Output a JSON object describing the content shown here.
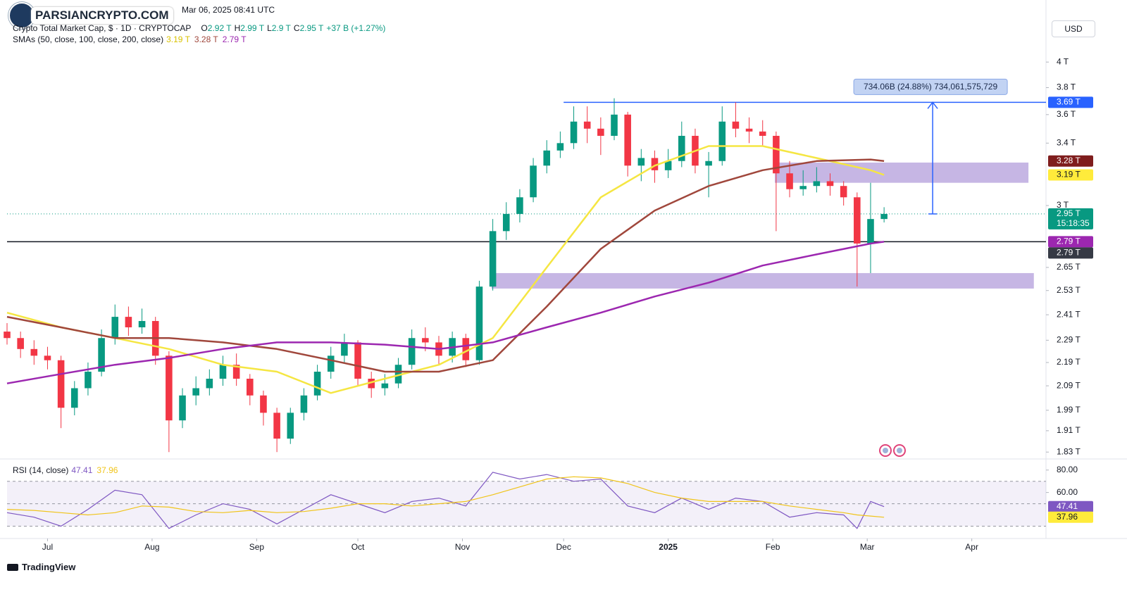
{
  "header": {
    "watermark": "PARSIANCRYPTO.COM",
    "timestamp": "Mar 06, 2025 08:41 UTC",
    "symbol": "Crypto Total Market Cap, $ · 1D · CRYPTOCAP",
    "ohlc": [
      {
        "key": "O",
        "value": "2.92 T"
      },
      {
        "key": "H",
        "value": "2.99 T"
      },
      {
        "key": "L",
        "value": "2.9 T"
      },
      {
        "key": "C",
        "value": "2.95 T"
      }
    ],
    "change": "+37 B (+1.27%)",
    "sma_label": "SMAs (50, close, 100, close, 200, close)",
    "currency": "USD",
    "brand": "TradingView"
  },
  "chart_data": {
    "type": "candlestick",
    "log_scale": true,
    "up_color": "#089981",
    "down_color": "#f23645",
    "candles": [
      [
        2.33,
        2.37,
        2.27,
        2.3
      ],
      [
        2.3,
        2.33,
        2.21,
        2.25
      ],
      [
        2.25,
        2.29,
        2.18,
        2.22
      ],
      [
        2.22,
        2.26,
        2.16,
        2.2
      ],
      [
        2.2,
        2.22,
        1.92,
        2.0
      ],
      [
        2.0,
        2.11,
        1.97,
        2.08
      ],
      [
        2.08,
        2.19,
        2.05,
        2.15
      ],
      [
        2.15,
        2.34,
        2.13,
        2.3
      ],
      [
        2.3,
        2.46,
        2.27,
        2.4
      ],
      [
        2.4,
        2.45,
        2.31,
        2.35
      ],
      [
        2.35,
        2.44,
        2.32,
        2.38
      ],
      [
        2.38,
        2.4,
        2.18,
        2.22
      ],
      [
        2.22,
        2.24,
        1.83,
        1.95
      ],
      [
        1.95,
        2.08,
        1.92,
        2.05
      ],
      [
        2.05,
        2.13,
        2.01,
        2.08
      ],
      [
        2.08,
        2.16,
        2.05,
        2.12
      ],
      [
        2.12,
        2.22,
        2.09,
        2.18
      ],
      [
        2.18,
        2.23,
        2.09,
        2.12
      ],
      [
        2.12,
        2.14,
        2.01,
        2.05
      ],
      [
        2.05,
        2.07,
        1.93,
        1.98
      ],
      [
        1.98,
        2.0,
        1.83,
        1.88
      ],
      [
        1.88,
        2.0,
        1.86,
        1.98
      ],
      [
        1.98,
        2.08,
        1.95,
        2.05
      ],
      [
        2.05,
        2.18,
        2.03,
        2.15
      ],
      [
        2.15,
        2.26,
        2.12,
        2.22
      ],
      [
        2.22,
        2.32,
        2.19,
        2.28
      ],
      [
        2.28,
        2.29,
        2.09,
        2.12
      ],
      [
        2.12,
        2.15,
        2.04,
        2.08
      ],
      [
        2.08,
        2.14,
        2.05,
        2.1
      ],
      [
        2.1,
        2.21,
        2.08,
        2.18
      ],
      [
        2.18,
        2.34,
        2.16,
        2.3
      ],
      [
        2.3,
        2.35,
        2.24,
        2.28
      ],
      [
        2.28,
        2.31,
        2.18,
        2.22
      ],
      [
        2.22,
        2.33,
        2.19,
        2.3
      ],
      [
        2.3,
        2.32,
        2.17,
        2.2
      ],
      [
        2.2,
        2.58,
        2.18,
        2.55
      ],
      [
        2.55,
        2.92,
        2.53,
        2.85
      ],
      [
        2.85,
        3.02,
        2.8,
        2.95
      ],
      [
        2.95,
        3.1,
        2.9,
        3.05
      ],
      [
        3.05,
        3.3,
        3.02,
        3.25
      ],
      [
        3.25,
        3.42,
        3.2,
        3.35
      ],
      [
        3.35,
        3.48,
        3.3,
        3.4
      ],
      [
        3.4,
        3.66,
        3.36,
        3.55
      ],
      [
        3.55,
        3.66,
        3.4,
        3.5
      ],
      [
        3.5,
        3.58,
        3.32,
        3.45
      ],
      [
        3.45,
        3.72,
        3.42,
        3.6
      ],
      [
        3.6,
        3.62,
        3.18,
        3.25
      ],
      [
        3.25,
        3.36,
        3.15,
        3.3
      ],
      [
        3.3,
        3.35,
        3.14,
        3.22
      ],
      [
        3.22,
        3.36,
        3.17,
        3.28
      ],
      [
        3.28,
        3.55,
        3.24,
        3.45
      ],
      [
        3.45,
        3.5,
        3.2,
        3.25
      ],
      [
        3.25,
        3.34,
        3.05,
        3.28
      ],
      [
        3.28,
        3.66,
        3.25,
        3.55
      ],
      [
        3.55,
        3.69,
        3.44,
        3.5
      ],
      [
        3.5,
        3.58,
        3.4,
        3.48
      ],
      [
        3.48,
        3.56,
        3.38,
        3.45
      ],
      [
        3.45,
        3.48,
        2.85,
        3.2
      ],
      [
        3.2,
        3.28,
        3.05,
        3.1
      ],
      [
        3.1,
        3.22,
        3.06,
        3.12
      ],
      [
        3.12,
        3.24,
        3.08,
        3.15
      ],
      [
        3.15,
        3.2,
        3.06,
        3.12
      ],
      [
        3.12,
        3.15,
        3.0,
        3.05
      ],
      [
        3.05,
        3.08,
        2.55,
        2.78
      ],
      [
        2.78,
        3.14,
        2.62,
        2.92
      ],
      [
        2.92,
        2.99,
        2.9,
        2.95
      ]
    ],
    "xlim": [
      0,
      77
    ],
    "xticks": [
      {
        "value": 3,
        "label": "Jul"
      },
      {
        "value": 10.75,
        "label": "Aug"
      },
      {
        "value": 18.5,
        "label": "Sep"
      },
      {
        "value": 26,
        "label": "Oct"
      },
      {
        "value": 33.75,
        "label": "Nov"
      },
      {
        "value": 41.25,
        "label": "Dec"
      },
      {
        "value": 49,
        "label": "2025"
      },
      {
        "value": 56.75,
        "label": "Feb"
      },
      {
        "value": 63.75,
        "label": "Mar"
      },
      {
        "value": 71.5,
        "label": "Apr"
      }
    ],
    "ylim": [
      1.81,
      4.53
    ],
    "yticks": [
      {
        "value": 1.83,
        "label": "1.83 T"
      },
      {
        "value": 1.91,
        "label": "1.91 T"
      },
      {
        "value": 1.99,
        "label": "1.99 T"
      },
      {
        "value": 2.09,
        "label": "2.09 T"
      },
      {
        "value": 2.19,
        "label": "2.19 T"
      },
      {
        "value": 2.29,
        "label": "2.29 T"
      },
      {
        "value": 2.41,
        "label": "2.41 T"
      },
      {
        "value": 2.53,
        "label": "2.53 T"
      },
      {
        "value": 2.65,
        "label": "2.65 T"
      },
      {
        "value": 3,
        "label": "3 T"
      },
      {
        "value": 3.4,
        "label": "3.4 T"
      },
      {
        "value": 3.6,
        "label": "3.6 T"
      },
      {
        "value": 3.8,
        "label": "3.8 T"
      },
      {
        "value": 4,
        "label": "4 T"
      }
    ],
    "series": [
      {
        "legend_value": "3.19 T",
        "color": "#f5e642",
        "x": [
          0,
          4,
          8,
          12,
          16,
          20,
          24,
          28,
          32,
          36,
          40,
          44,
          48,
          52,
          56,
          60,
          64,
          65
        ],
        "values": [
          2.42,
          2.35,
          2.3,
          2.25,
          2.18,
          2.15,
          2.06,
          2.12,
          2.18,
          2.3,
          2.65,
          3.05,
          3.25,
          3.38,
          3.38,
          3.3,
          3.22,
          3.19
        ]
      },
      {
        "legend_value": "3.28 T",
        "color": "#a0473c",
        "x": [
          0,
          4,
          8,
          12,
          16,
          20,
          24,
          28,
          32,
          36,
          40,
          44,
          48,
          52,
          56,
          60,
          64,
          65
        ],
        "values": [
          2.4,
          2.35,
          2.3,
          2.3,
          2.28,
          2.25,
          2.2,
          2.15,
          2.15,
          2.2,
          2.45,
          2.75,
          2.97,
          3.12,
          3.22,
          3.28,
          3.29,
          3.28
        ]
      },
      {
        "legend_value": "2.79 T",
        "color": "#9c27b0",
        "x": [
          0,
          4,
          8,
          12,
          16,
          20,
          24,
          28,
          32,
          36,
          40,
          44,
          48,
          52,
          56,
          60,
          64,
          65
        ],
        "values": [
          2.1,
          2.14,
          2.18,
          2.21,
          2.25,
          2.28,
          2.28,
          2.27,
          2.25,
          2.28,
          2.35,
          2.42,
          2.5,
          2.57,
          2.66,
          2.72,
          2.78,
          2.79
        ]
      }
    ],
    "lines": [
      {
        "value": 3.69,
        "from": 41.25,
        "color": "#2962ff"
      },
      {
        "value": 2.79,
        "from": 0,
        "color": "#131722"
      }
    ],
    "zones": [
      {
        "from": 56.9,
        "to": 75.7,
        "low": 3.14,
        "high": 3.27,
        "color": "#b39ddb"
      },
      {
        "from": 35.9,
        "to": 76.1,
        "low": 2.54,
        "high": 2.62,
        "color": "#b39ddb"
      }
    ],
    "measure": {
      "x": 68.6,
      "from": 2.95,
      "to": 3.69,
      "label": "734.06B (24.88%) 734,061,575,729",
      "color": "#2962ff"
    },
    "badges": [
      {
        "value": 3.69,
        "label": "3.69 T",
        "color": "#2962ff",
        "text_color": "#ffffff"
      },
      {
        "value": 3.28,
        "label": "3.28 T",
        "color": "#7f1d1d",
        "text_color": "#ffffff"
      },
      {
        "value": 3.19,
        "label": "3.19 T",
        "color": "#ffeb3b",
        "text_color": "#131722"
      },
      {
        "value": 2.95,
        "label": "2.95 T",
        "countdown": "15:18:35",
        "color": "#089981",
        "text_color": "#ffffff"
      },
      {
        "value": 2.79,
        "label": "2.79 T",
        "color": "#9c27b0",
        "text_color": "#ffffff"
      },
      {
        "value": 2.79,
        "label": "2.79 T",
        "color": "#363a45",
        "text_color": "#ffffff"
      }
    ],
    "rsi": {
      "title": "RSI (14, close)",
      "ylim": [
        19,
        88
      ],
      "yticks": [
        {
          "value": 80,
          "label": "80.00"
        },
        {
          "value": 60,
          "label": "60.00"
        }
      ],
      "band_lines": [
        70,
        50,
        30
      ],
      "series": [
        {
          "legend_value": "47.41",
          "color": "#7e57c2",
          "x": [
            0,
            2,
            4,
            6,
            8,
            10,
            12,
            14,
            16,
            18,
            20,
            22,
            24,
            26,
            28,
            30,
            32,
            34,
            36,
            38,
            40,
            42,
            44,
            46,
            48,
            50,
            52,
            54,
            56,
            58,
            60,
            62,
            63,
            64,
            65
          ],
          "values": [
            42,
            38,
            30,
            45,
            62,
            58,
            28,
            40,
            50,
            45,
            32,
            45,
            58,
            50,
            42,
            52,
            55,
            48,
            78,
            72,
            76,
            70,
            72,
            48,
            42,
            55,
            45,
            55,
            52,
            38,
            42,
            40,
            28,
            52,
            47.41
          ]
        },
        {
          "legend_value": "37.96",
          "color": "#f0c419",
          "x": [
            0,
            2,
            4,
            6,
            8,
            10,
            12,
            14,
            16,
            18,
            20,
            22,
            24,
            26,
            28,
            30,
            32,
            34,
            36,
            38,
            40,
            42,
            44,
            46,
            48,
            50,
            52,
            54,
            56,
            58,
            60,
            62,
            63,
            64,
            65
          ],
          "values": [
            45,
            44,
            42,
            40,
            42,
            48,
            47,
            43,
            42,
            44,
            42,
            43,
            46,
            50,
            50,
            48,
            50,
            52,
            58,
            65,
            72,
            74,
            73,
            68,
            60,
            55,
            52,
            52,
            52,
            48,
            45,
            42,
            40,
            39,
            37.96
          ]
        }
      ],
      "badges": [
        {
          "value": 47.41,
          "color": "#7e57c2",
          "text_color": "#ffffff"
        },
        {
          "value": 37.96,
          "color": "#ffeb3b",
          "text_color": "#131722"
        }
      ]
    }
  }
}
